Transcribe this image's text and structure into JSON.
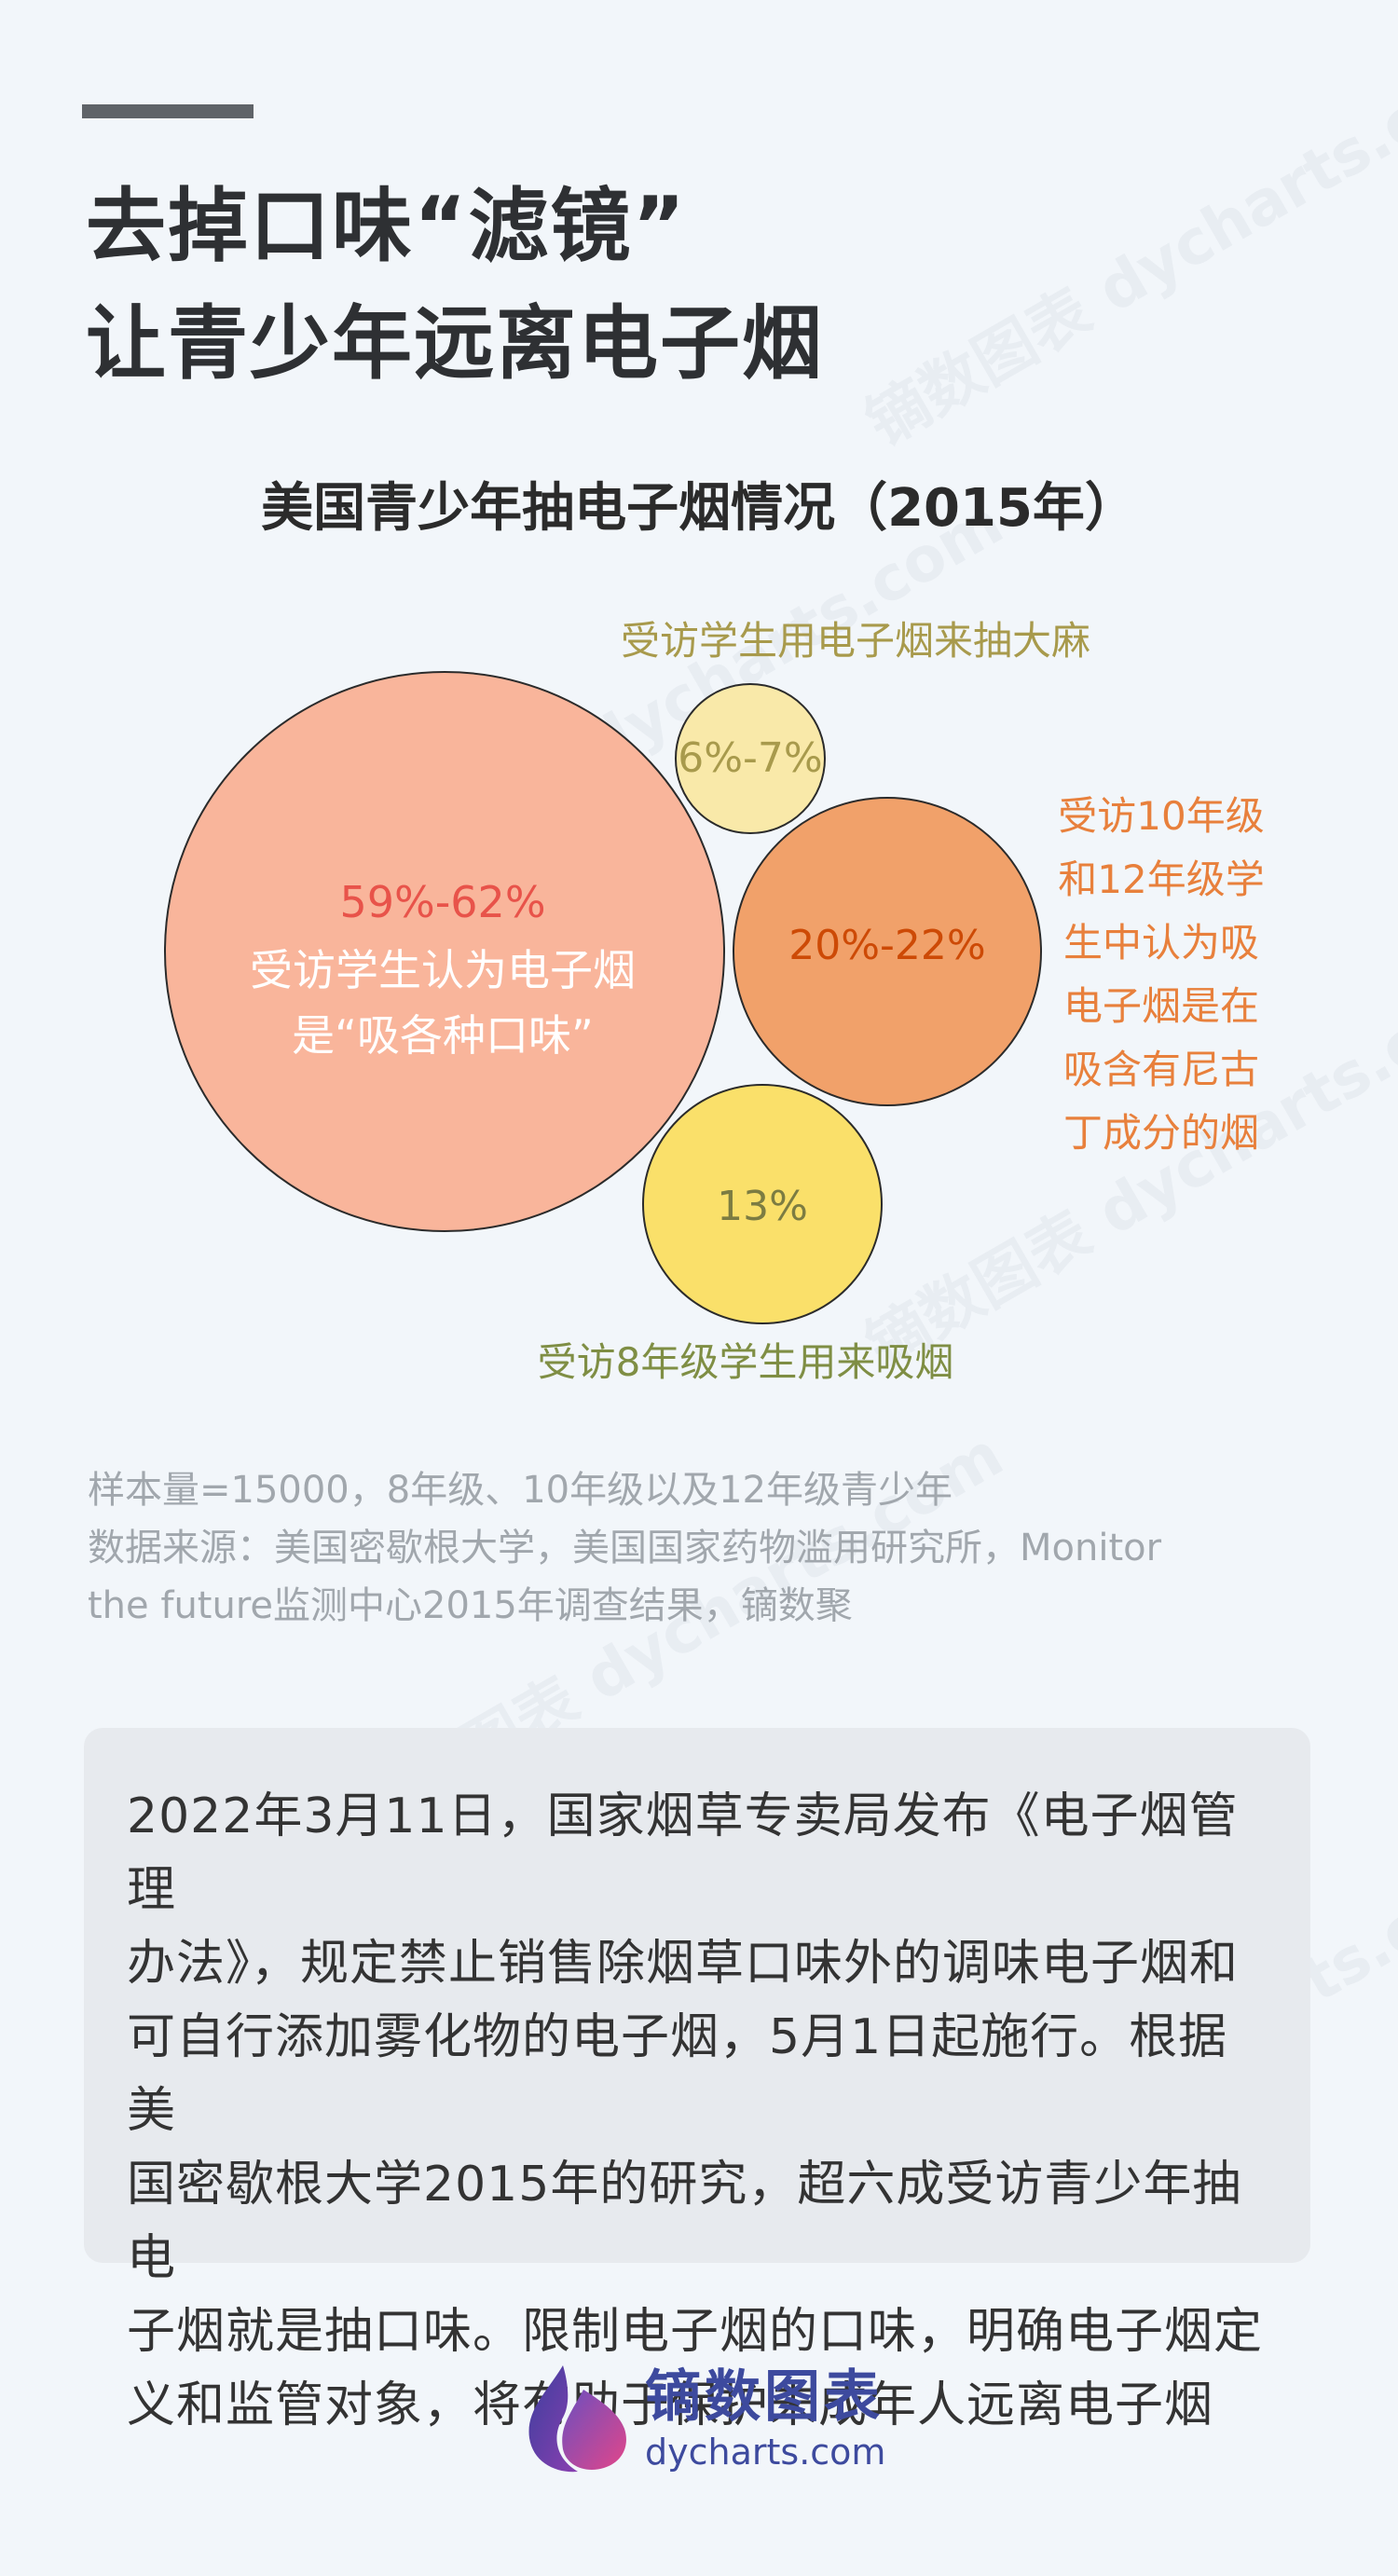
{
  "header": {
    "title_line1": "去掉口味“滤镜”",
    "title_line2": "让青少年远离电子烟"
  },
  "chart_data": {
    "type": "bubble",
    "title": "美国青少年抽电子烟情况（2015年）",
    "series": [
      {
        "value_label": "59%-62%",
        "value_range": [
          59,
          62
        ],
        "inner_label": [
          "受访学生认为电子烟",
          "是“吸各种口味”"
        ],
        "fill": "#f9b59b",
        "value_color": "#e8534a",
        "label_color": "#ffffff"
      },
      {
        "value_label": "6%-7%",
        "value_range": [
          6,
          7
        ],
        "label": "受访学生用电子烟来抽大麻",
        "fill": "#f9e9a9",
        "value_color": "#a89a4c",
        "label_color": "#a89a4c"
      },
      {
        "value_label": "20%-22%",
        "value_range": [
          20,
          22
        ],
        "label": [
          "受访10年级",
          "和12年级学",
          "生中认为吸",
          "电子烟是在",
          "吸含有尼古",
          "丁成分的烟"
        ],
        "fill": "#f1a16a",
        "value_color": "#cd4a06",
        "label_color": "#e8803c"
      },
      {
        "value_label": "13%",
        "value_range": [
          13,
          13
        ],
        "label": "受访8年级学生用来吸烟",
        "fill": "#fae06a",
        "value_color": "#7c7c42",
        "label_color": "#7f8e44"
      }
    ]
  },
  "notes": {
    "sample": "样本量=15000，8年级、10年级以及12年级青少年",
    "source_line1": "数据来源：美国密歇根大学，美国国家药物滥用研究所，Monitor",
    "source_line2": "the future监测中心2015年调查结果，镝数聚"
  },
  "summary": {
    "lines": [
      "2022年3月11日，国家烟草专卖局发布《电子烟管理",
      "办法》，规定禁止销售除烟草口味外的调味电子烟和",
      "可自行添加雾化物的电子烟，5月1日起施行。根据美",
      "国密歇根大学2015年的研究，超六成受访青少年抽电",
      "子烟就是抽口味。限制电子烟的口味，明确电子烟定",
      "义和监管对象，将有助于保护未成年人远离电子烟"
    ]
  },
  "brand": {
    "name": "镝数图表",
    "url": "dycharts.com",
    "logo_icon": "flame-logo-icon",
    "watermark": "镝数图表 dycharts.com"
  }
}
